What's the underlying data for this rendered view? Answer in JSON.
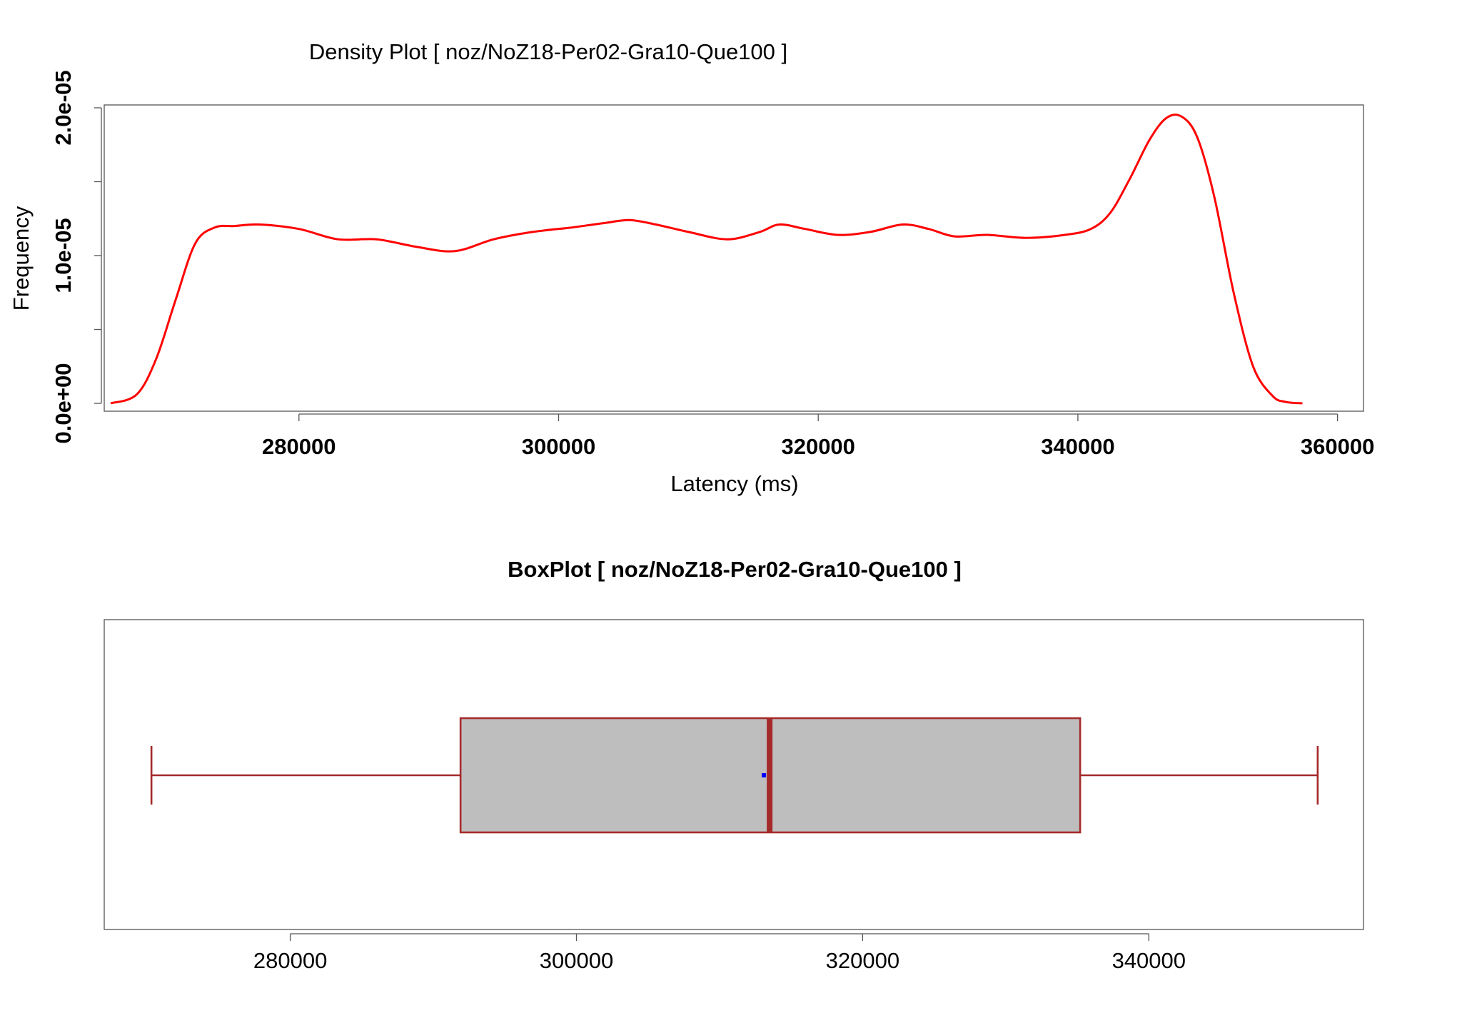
{
  "chart_data": [
    {
      "type": "line",
      "title": "Density Plot [ noz/NoZ18-Per02-Gra10-Que100 ]",
      "xlabel": "Latency (ms)",
      "ylabel": "Frequency",
      "xlim": [
        265000,
        362000
      ],
      "ylim": [
        0,
        2e-05
      ],
      "xticks": [
        "280000",
        "300000",
        "320000",
        "340000",
        "360000"
      ],
      "xtick_values": [
        280000,
        300000,
        320000,
        340000,
        360000
      ],
      "yticks": [
        "0.0e+00",
        "1.0e-05",
        "2.0e-05"
      ],
      "ytick_values": [
        0,
        1e-05,
        2e-05
      ],
      "series": [
        {
          "color": "#ff0000",
          "x": [
            265500,
            267500,
            269000,
            270500,
            272000,
            273500,
            275000,
            277000,
            280000,
            283000,
            286000,
            289000,
            292000,
            295000,
            298000,
            301000,
            303500,
            305500,
            307500,
            310000,
            313000,
            315500,
            317000,
            319000,
            321500,
            324000,
            326500,
            328500,
            330500,
            333000,
            336000,
            339000,
            341000,
            342500,
            344000,
            345500,
            346800,
            348000,
            349200,
            350500,
            352000,
            353500,
            355000,
            356000,
            357300
          ],
          "y": [
            0.0,
            6e-07,
            3e-06,
            7e-06,
            1.08e-05,
            1.19e-05,
            1.2e-05,
            1.21e-05,
            1.18e-05,
            1.11e-05,
            1.11e-05,
            1.06e-05,
            1.03e-05,
            1.11e-05,
            1.16e-05,
            1.19e-05,
            1.22e-05,
            1.24e-05,
            1.21e-05,
            1.16e-05,
            1.11e-05,
            1.16e-05,
            1.21e-05,
            1.18e-05,
            1.14e-05,
            1.16e-05,
            1.21e-05,
            1.18e-05,
            1.13e-05,
            1.14e-05,
            1.12e-05,
            1.14e-05,
            1.18e-05,
            1.29e-05,
            1.52e-05,
            1.78e-05,
            1.93e-05,
            1.94e-05,
            1.8e-05,
            1.4e-05,
            7.5e-06,
            2.5e-06,
            5e-07,
            1e-07,
            0.0
          ]
        }
      ]
    },
    {
      "type": "box",
      "title": "BoxPlot [ noz/NoZ18-Per02-Gra10-Que100 ]",
      "xlim": [
        267000,
        355000
      ],
      "xticks": [
        "280000",
        "300000",
        "320000",
        "340000"
      ],
      "xtick_values": [
        280000,
        300000,
        320000,
        340000
      ],
      "whisker_low": 270300,
      "q1": 291900,
      "median": 313500,
      "mean": 313100,
      "q3": 335200,
      "whisker_high": 351800,
      "box_fill": "#bebebe",
      "line_color": "#a52a2a",
      "mean_color": "#0000ff"
    }
  ]
}
